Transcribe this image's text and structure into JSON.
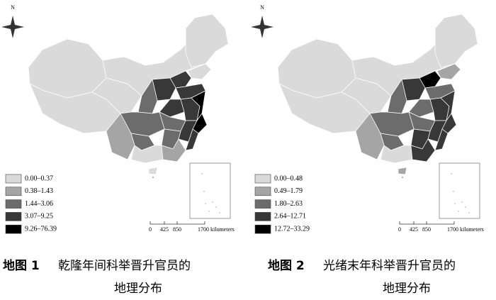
{
  "maps": [
    {
      "compass": "N",
      "legend": [
        "0.00–0.37",
        "0.38–1.43",
        "1.44–3.06",
        "3.07–9.25",
        "9.26–76.39"
      ],
      "scale": [
        "0",
        "425",
        "850",
        "1700 kilometers"
      ],
      "caption": {
        "label": "地图 1",
        "title": "乾隆年间科举晋升官员的",
        "title_line2": "地理分布"
      }
    },
    {
      "compass": "N",
      "legend": [
        "0.00–0.48",
        "0.49–1.79",
        "1.80–2.63",
        "2.64–12.71",
        "12.72–33.29"
      ],
      "scale": [
        "0",
        "425",
        "850",
        "1700 kilometers"
      ],
      "caption": {
        "label": "地图 2",
        "title": "光绪末年科举晋升官员的",
        "title_line2": "地理分布"
      }
    }
  ]
}
